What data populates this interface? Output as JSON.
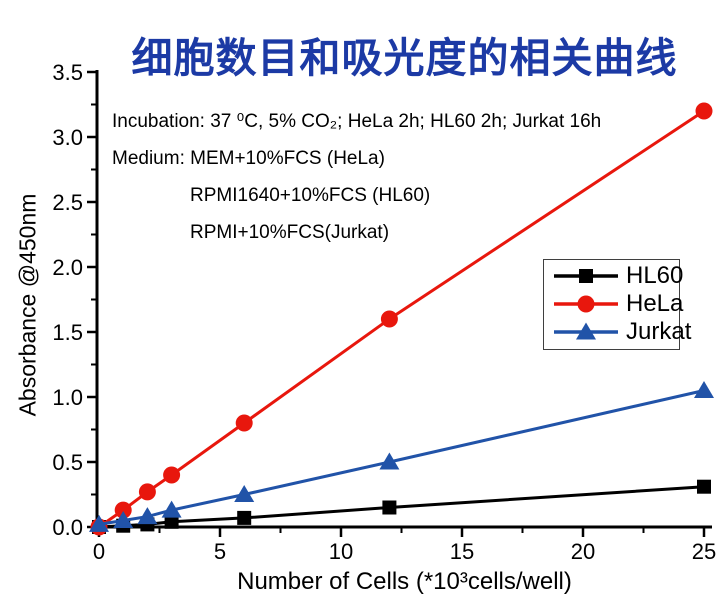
{
  "title": {
    "text": "细胞数目和吸光度的相关曲线",
    "color": "#1c3aa5"
  },
  "annotations": {
    "lines": [
      "Incubation: 37 ⁰C, 5% CO₂; HeLa 2h; HL60 2h; Jurkat 16h",
      "Medium: MEM+10%FCS (HeLa)",
      "RPMI1640+10%FCS (HL60)",
      "RPMI+10%FCS(Jurkat)"
    ]
  },
  "chart_data": {
    "type": "line",
    "title": "细胞数目和吸光度的相关曲线",
    "xlabel": "Number of Cells (*10³cells/well)",
    "ylabel": "Absorbance  @450nm",
    "x": [
      0,
      1,
      2,
      3,
      6,
      12,
      25
    ],
    "series": [
      {
        "name": "HL60",
        "color": "#000000",
        "marker": "square",
        "values": [
          0.0,
          0.01,
          0.02,
          0.04,
          0.07,
          0.15,
          0.31
        ]
      },
      {
        "name": "HeLa",
        "color": "#e8170d",
        "marker": "circle",
        "values": [
          0.0,
          0.13,
          0.27,
          0.4,
          0.8,
          1.6,
          3.2
        ]
      },
      {
        "name": "Jurkat",
        "color": "#2153a8",
        "marker": "triangle-up",
        "values": [
          0.02,
          0.05,
          0.08,
          0.13,
          0.25,
          0.5,
          1.05
        ]
      }
    ],
    "xlim": [
      0,
      25.4
    ],
    "ylim": [
      0,
      3.5
    ],
    "x_tick_values": [
      0,
      5,
      10,
      15,
      20,
      25
    ],
    "x_tick_labels": [
      "0",
      "5",
      "10",
      "15",
      "20",
      "25"
    ],
    "x_minor_ticks": [
      2.5,
      7.5,
      12.5,
      17.5,
      22.5
    ],
    "y_tick_values": [
      0.0,
      0.5,
      1.0,
      1.5,
      2.0,
      2.5,
      3.0,
      3.5
    ],
    "y_tick_labels": [
      "0.0",
      "0.5",
      "1.0",
      "1.5",
      "2.0",
      "2.5",
      "3.0",
      "3.5"
    ],
    "y_minor_ticks": [
      0.25,
      0.75,
      1.25,
      1.75,
      2.25,
      2.75,
      3.25
    ],
    "grid": false,
    "legend_position": "right-middle",
    "axis_color": "#000000"
  }
}
